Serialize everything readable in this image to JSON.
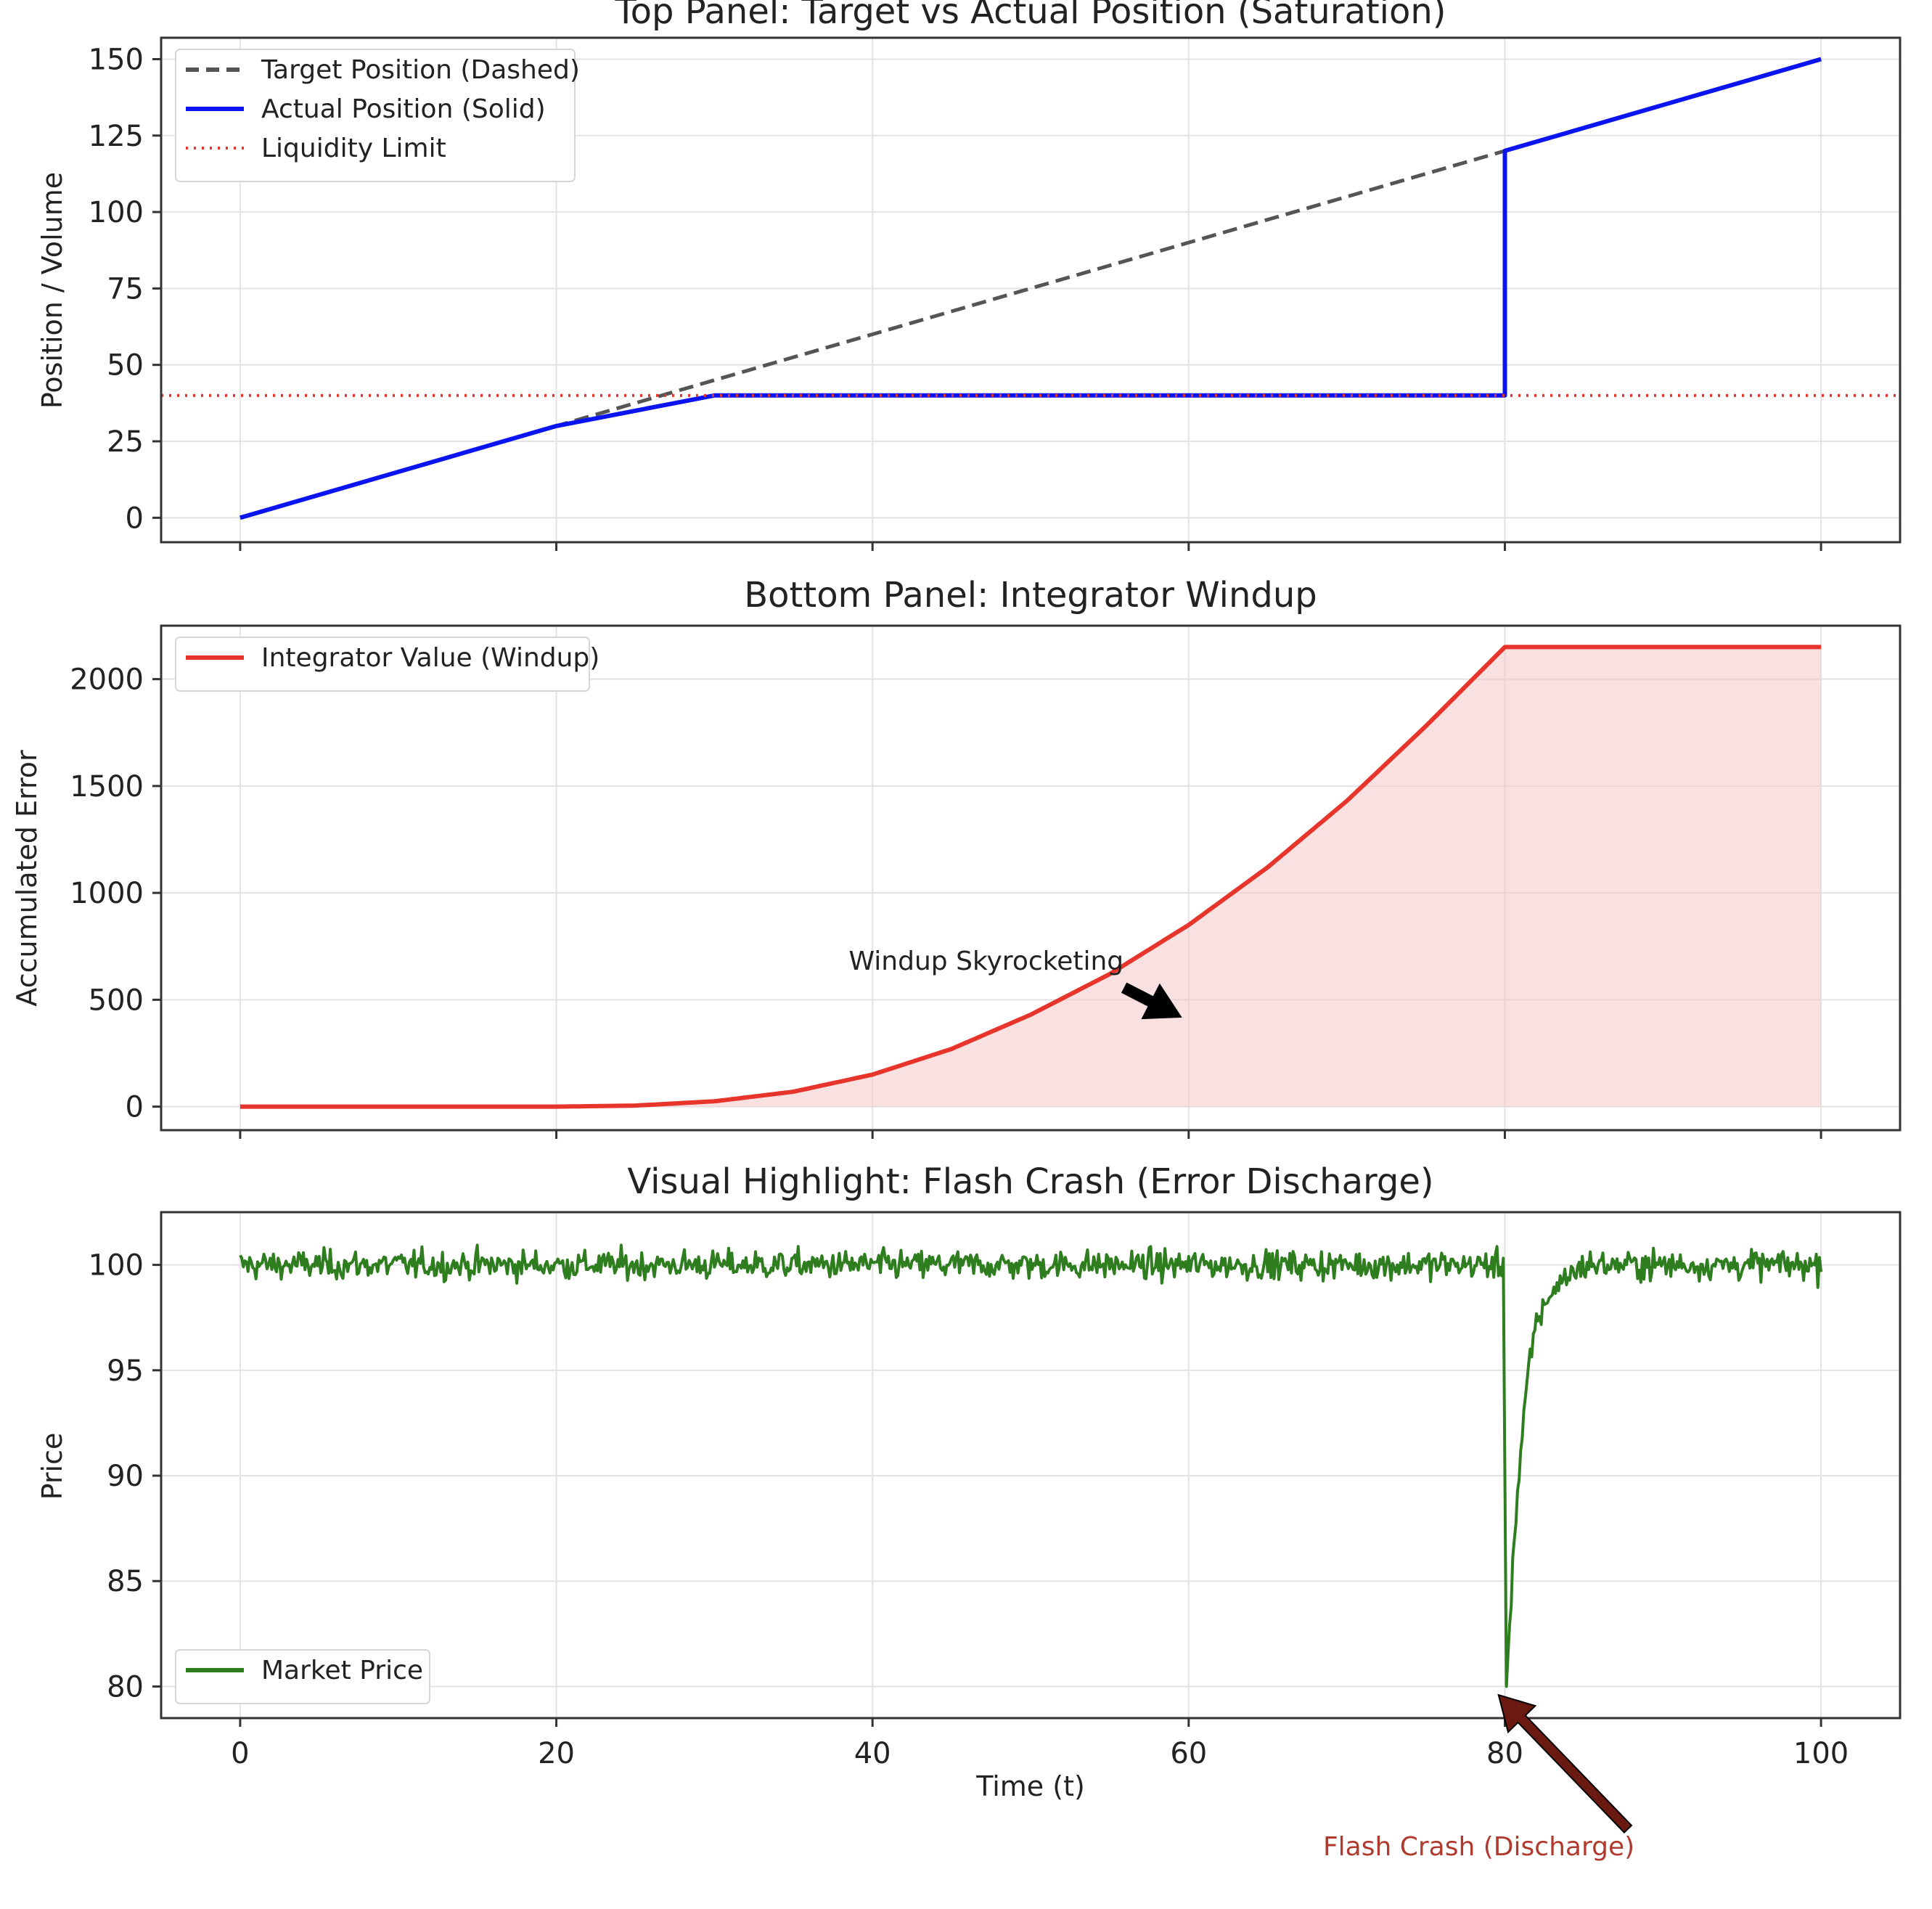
{
  "chart_data": [
    {
      "type": "line",
      "title": "Top Panel: Target vs Actual Position (Saturation)",
      "xlabel": "",
      "ylabel": "Position / Volume",
      "xlim": [
        -5,
        105
      ],
      "ylim": [
        -8,
        157
      ],
      "x_ticks": [
        0,
        20,
        40,
        60,
        80,
        100
      ],
      "y_ticks": [
        0,
        25,
        50,
        75,
        100,
        125,
        150
      ],
      "show_x_tick_labels": false,
      "grid": true,
      "legend_position": "top-left",
      "series": [
        {
          "name": "Target Position (Dashed)",
          "color": "#555555",
          "style": "dashed",
          "x": [
            0,
            20,
            100
          ],
          "y": [
            0,
            30,
            150
          ]
        },
        {
          "name": "Actual Position (Solid)",
          "color": "#0a14f0",
          "style": "solid",
          "x": [
            0,
            20,
            30,
            80,
            80,
            100
          ],
          "y": [
            0,
            30,
            40,
            40,
            120,
            150
          ]
        },
        {
          "name": "Liquidity Limit",
          "color": "#e8352b",
          "style": "dotted",
          "hline": 40
        }
      ]
    },
    {
      "type": "area",
      "title": "Bottom Panel: Integrator Windup",
      "xlabel": "",
      "ylabel": "Accumulated Error",
      "xlim": [
        -5,
        105
      ],
      "ylim": [
        -110,
        2250
      ],
      "x_ticks": [
        0,
        20,
        40,
        60,
        80,
        100
      ],
      "y_ticks": [
        0,
        500,
        1000,
        1500,
        2000
      ],
      "show_x_tick_labels": false,
      "grid": true,
      "legend_position": "top-left",
      "series": [
        {
          "name": "Integrator Value (Windup)",
          "color": "#e8352b",
          "fill_color": "#f5c9c9",
          "x": [
            0,
            20,
            25,
            30,
            35,
            40,
            45,
            50,
            55,
            60,
            65,
            70,
            75,
            80,
            100
          ],
          "y": [
            0,
            0,
            5,
            25,
            70,
            150,
            270,
            430,
            620,
            850,
            1120,
            1430,
            1780,
            2150,
            2150
          ]
        }
      ],
      "annotations": [
        {
          "text": "Windup Skyrocketing",
          "text_x": 38.5,
          "text_y": 640,
          "arrow_to": [
            59.5,
            420
          ],
          "arrow_color": "#000000"
        }
      ]
    },
    {
      "type": "line",
      "title": "Visual Highlight: Flash Crash (Error Discharge)",
      "xlabel": "Time (t)",
      "ylabel": "Price",
      "xlim": [
        -5,
        105
      ],
      "ylim": [
        78.5,
        102.5
      ],
      "x_ticks": [
        0,
        20,
        40,
        60,
        80,
        100
      ],
      "y_ticks": [
        80,
        85,
        90,
        95,
        100
      ],
      "show_x_tick_labels": true,
      "grid": true,
      "legend_position": "bottom-left",
      "series": [
        {
          "name": "Market Price",
          "color": "#2e7d1e",
          "x": [
            0,
            10,
            20,
            30,
            40,
            50,
            60,
            70,
            79.9,
            80.1,
            80.5,
            81,
            81.5,
            82,
            83,
            84,
            85,
            90,
            95,
            100
          ],
          "y": [
            100,
            100,
            100,
            100,
            100,
            100,
            100,
            100,
            100,
            80,
            86,
            91,
            95,
            97.3,
            98.8,
            99.5,
            100,
            100,
            100,
            100
          ],
          "noise_amplitude": 0.8
        }
      ],
      "annotations": [
        {
          "text": "Flash Crash (Discharge)",
          "text_x": 68.5,
          "text_y": 72,
          "arrow_to": [
            79.6,
            79.6
          ],
          "arrow_color": "#6b1a12",
          "text_color": "#b03a2e"
        }
      ]
    }
  ]
}
